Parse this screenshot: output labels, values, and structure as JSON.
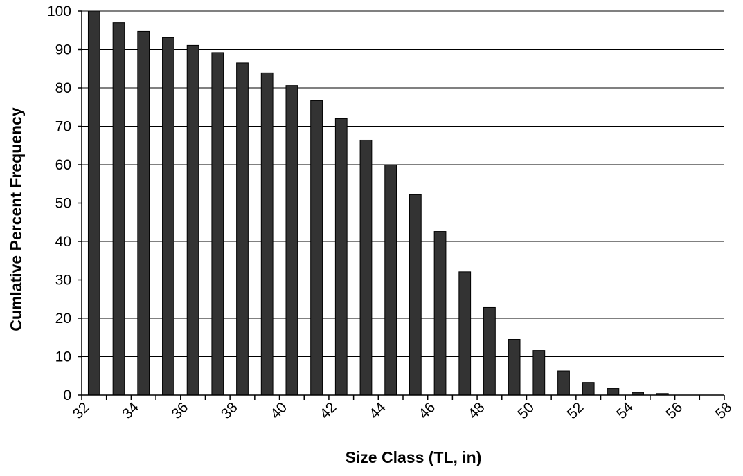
{
  "chart_data": {
    "type": "bar",
    "title": "",
    "xlabel": "Size Class (TL, in)",
    "ylabel": "Cumlative Percent Frequency",
    "ylim": [
      0,
      100
    ],
    "yticks": [
      "0",
      "10",
      "20",
      "30",
      "40",
      "50",
      "60",
      "70",
      "80",
      "90",
      "100"
    ],
    "xlim": [
      32,
      58
    ],
    "xticks": [
      "32",
      "34",
      "36",
      "38",
      "40",
      "42",
      "44",
      "46",
      "48",
      "50",
      "52",
      "54",
      "56",
      "58"
    ],
    "grid": true,
    "legend": false,
    "bar_color": "#333333",
    "categories": [
      "32",
      "33",
      "34",
      "35",
      "36",
      "37",
      "38",
      "39",
      "40",
      "41",
      "42",
      "43",
      "44",
      "45",
      "46",
      "47",
      "48",
      "49",
      "50",
      "51",
      "52",
      "53",
      "54",
      "55",
      "56",
      "57"
    ],
    "values": [
      100,
      97,
      94.7,
      93.1,
      91.1,
      89.2,
      86.5,
      83.9,
      80.6,
      76.7,
      72,
      66.4,
      59.9,
      52.2,
      42.6,
      32.1,
      22.8,
      14.5,
      11.6,
      6.3,
      3.3,
      1.7,
      0.7,
      0.4,
      0,
      0
    ]
  }
}
